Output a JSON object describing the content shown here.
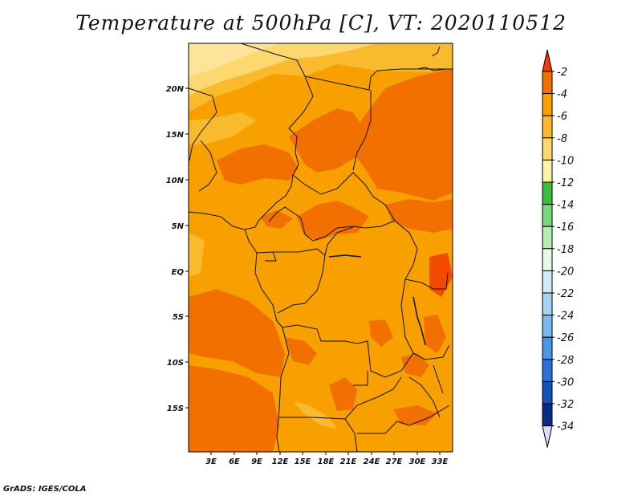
{
  "title": "Temperature at 500hPa [C], VT: 2020110512",
  "credit": "GrADS: IGES/COLA",
  "map": {
    "lon_ticks": [
      "3E",
      "6E",
      "9E",
      "12E",
      "15E",
      "18E",
      "21E",
      "24E",
      "27E",
      "30E",
      "33E"
    ],
    "lat_ticks": [
      "20N",
      "15N",
      "10N",
      "5N",
      "EQ",
      "5S",
      "10S",
      "15S"
    ]
  },
  "colorbar": {
    "labels": [
      "-2",
      "-4",
      "-6",
      "-8",
      "-10",
      "-12",
      "-14",
      "-16",
      "-18",
      "-20",
      "-22",
      "-24",
      "-26",
      "-28",
      "-30",
      "-32",
      "-34"
    ],
    "colors": [
      "#f24b00",
      "#f27000",
      "#f7a000",
      "#faba2e",
      "#fdd870",
      "#fdf2a8",
      "#3cbd3c",
      "#78d878",
      "#b4ecb4",
      "#e6fae6",
      "#d0eaf8",
      "#a8d4f4",
      "#7ab8ee",
      "#4a96e6",
      "#2a72d8",
      "#1450b8",
      "#0a2a88",
      "#04106a"
    ],
    "top_arrow_color": "#f23a00",
    "bottom_arrow_color": "#dcdcf8"
  }
}
